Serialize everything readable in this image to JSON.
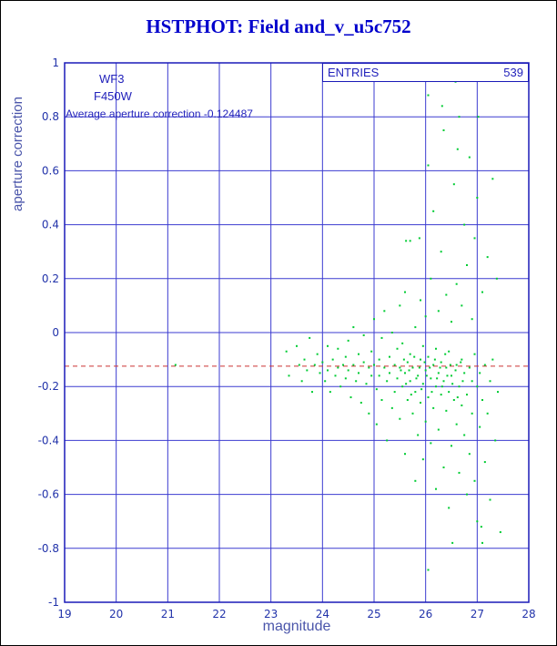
{
  "colors": {
    "title": "#0000cc",
    "text": "#2222bb",
    "ticks": "#2233aa",
    "axis_label": "#4a55aa",
    "grid": "#3b3bd0",
    "border": "#1a1ab8",
    "points": "#00cc33",
    "avg_line": "#cc3333"
  },
  "annotations": {
    "camera": "WF3",
    "filter": "F450W",
    "average_text": "Average aperture correction -0.124487",
    "entries_label": "ENTRIES",
    "entries_value": "539"
  },
  "chart_data": {
    "type": "scatter",
    "title": "HSTPHOT: Field and_v_u5c752",
    "xlabel": "magnitude",
    "ylabel": "aperture correction",
    "xlim": [
      19,
      28
    ],
    "ylim": [
      -1,
      1
    ],
    "xticks": [
      19,
      20,
      21,
      22,
      23,
      24,
      25,
      26,
      27,
      28
    ],
    "yticks": [
      -1,
      -0.8,
      -0.6,
      -0.4,
      -0.2,
      0,
      0.2,
      0.4,
      0.6,
      0.8,
      1
    ],
    "grid": true,
    "legend": "none",
    "entries": 539,
    "average_line_y": -0.124487,
    "series": [
      {
        "name": "aperture corrections",
        "marker": "dot",
        "points": [
          [
            21.15,
            -0.12
          ],
          [
            23.3,
            -0.07
          ],
          [
            23.35,
            -0.16
          ],
          [
            23.5,
            -0.05
          ],
          [
            23.55,
            -0.12
          ],
          [
            23.6,
            -0.18
          ],
          [
            23.65,
            -0.1
          ],
          [
            23.7,
            -0.14
          ],
          [
            23.75,
            -0.02
          ],
          [
            23.8,
            -0.22
          ],
          [
            23.85,
            -0.12
          ],
          [
            23.9,
            -0.08
          ],
          [
            23.95,
            -0.15
          ],
          [
            24.0,
            -0.11
          ],
          [
            24.05,
            -0.18
          ],
          [
            24.1,
            -0.05
          ],
          [
            24.1,
            -0.14
          ],
          [
            24.15,
            -0.22
          ],
          [
            24.2,
            -0.1
          ],
          [
            24.25,
            -0.16
          ],
          [
            24.3,
            -0.06
          ],
          [
            24.3,
            -0.13
          ],
          [
            24.35,
            -0.2
          ],
          [
            24.4,
            -0.12
          ],
          [
            24.45,
            -0.09
          ],
          [
            24.45,
            -0.17
          ],
          [
            24.5,
            -0.03
          ],
          [
            24.5,
            -0.14
          ],
          [
            24.55,
            -0.24
          ],
          [
            24.6,
            -0.12
          ],
          [
            24.6,
            0.02
          ],
          [
            24.65,
            -0.18
          ],
          [
            24.7,
            -0.08
          ],
          [
            24.7,
            -0.15
          ],
          [
            24.75,
            -0.26
          ],
          [
            24.8,
            -0.11
          ],
          [
            24.8,
            -0.01
          ],
          [
            24.85,
            -0.19
          ],
          [
            24.9,
            -0.13
          ],
          [
            24.9,
            -0.3
          ],
          [
            24.95,
            -0.07
          ],
          [
            24.95,
            -0.16
          ],
          [
            25.0,
            -0.12
          ],
          [
            25.0,
            0.05
          ],
          [
            25.05,
            -0.21
          ],
          [
            25.05,
            -0.34
          ],
          [
            25.1,
            -0.1
          ],
          [
            25.1,
            -0.16
          ],
          [
            25.15,
            -0.02
          ],
          [
            25.15,
            -0.25
          ],
          [
            25.2,
            -0.13
          ],
          [
            25.2,
            0.08
          ],
          [
            25.25,
            -0.18
          ],
          [
            25.25,
            -0.4
          ],
          [
            25.3,
            -0.09
          ],
          [
            25.3,
            -0.15
          ],
          [
            25.35,
            -0.28
          ],
          [
            25.35,
            0
          ],
          [
            25.4,
            -0.12
          ],
          [
            25.4,
            -0.22
          ],
          [
            25.45,
            -0.06
          ],
          [
            25.45,
            -0.17
          ],
          [
            25.5,
            -0.13
          ],
          [
            25.5,
            0.1
          ],
          [
            25.5,
            -0.32
          ],
          [
            25.52,
            -0.14
          ],
          [
            25.55,
            -0.2
          ],
          [
            25.55,
            -0.04
          ],
          [
            25.58,
            -0.1
          ],
          [
            25.6,
            -0.15
          ],
          [
            25.6,
            -0.45
          ],
          [
            25.6,
            0.15
          ],
          [
            25.62,
            -0.19
          ],
          [
            25.62,
            0.34
          ],
          [
            25.65,
            -0.11
          ],
          [
            25.65,
            -0.25
          ],
          [
            25.68,
            -0.14
          ],
          [
            25.7,
            -0.08
          ],
          [
            25.7,
            -0.18
          ],
          [
            25.7,
            0.34
          ],
          [
            25.72,
            -0.23
          ],
          [
            25.75,
            -0.3
          ],
          [
            25.75,
            -0.13
          ],
          [
            25.78,
            -0.09
          ],
          [
            25.8,
            -0.22
          ],
          [
            25.8,
            0.02
          ],
          [
            25.8,
            -0.55
          ],
          [
            25.82,
            -0.17
          ],
          [
            25.85,
            -0.16
          ],
          [
            25.85,
            -0.38
          ],
          [
            25.88,
            -0.13
          ],
          [
            25.88,
            0.35
          ],
          [
            25.9,
            -0.1
          ],
          [
            25.9,
            -0.26
          ],
          [
            25.9,
            0.12
          ],
          [
            25.92,
            -0.21
          ],
          [
            25.95,
            -0.19
          ],
          [
            25.95,
            -0.05
          ],
          [
            25.95,
            -0.47
          ],
          [
            25.98,
            -0.11
          ],
          [
            26.0,
            -0.14
          ],
          [
            26.0,
            0.06
          ],
          [
            26.0,
            -0.33
          ],
          [
            26.02,
            -0.16
          ],
          [
            26.05,
            -0.24
          ],
          [
            26.05,
            -0.09
          ],
          [
            26.05,
            0.62
          ],
          [
            26.05,
            0.88
          ],
          [
            26.05,
            -0.88
          ],
          [
            26.08,
            -0.13
          ],
          [
            26.1,
            -0.17
          ],
          [
            26.1,
            -0.41
          ],
          [
            26.1,
            0.2
          ],
          [
            26.12,
            -0.22
          ],
          [
            26.15,
            -0.12
          ],
          [
            26.15,
            -0.28
          ],
          [
            26.15,
            0.45
          ],
          [
            26.18,
            -0.1
          ],
          [
            26.2,
            -0.06
          ],
          [
            26.2,
            -0.2
          ],
          [
            26.2,
            -0.58
          ],
          [
            26.22,
            -0.17
          ],
          [
            26.25,
            -0.15
          ],
          [
            26.25,
            0.08
          ],
          [
            26.25,
            -0.36
          ],
          [
            26.28,
            -0.13
          ],
          [
            26.3,
            -0.23
          ],
          [
            26.3,
            -0.11
          ],
          [
            26.3,
            0.3
          ],
          [
            26.32,
            -0.2
          ],
          [
            26.32,
            0.84
          ],
          [
            26.35,
            -0.18
          ],
          [
            26.35,
            -0.5
          ],
          [
            26.35,
            0.75
          ],
          [
            26.38,
            -0.08
          ],
          [
            26.4,
            -0.13
          ],
          [
            26.4,
            -0.29
          ],
          [
            26.4,
            0.14
          ],
          [
            26.42,
            -0.16
          ],
          [
            26.45,
            -0.07
          ],
          [
            26.45,
            -0.22
          ],
          [
            26.45,
            -0.65
          ],
          [
            26.48,
            -0.12
          ],
          [
            26.5,
            -0.16
          ],
          [
            26.5,
            0.04
          ],
          [
            26.5,
            -0.42
          ],
          [
            26.52,
            -0.19
          ],
          [
            26.52,
            -0.78
          ],
          [
            26.55,
            -0.25
          ],
          [
            26.55,
            0.55
          ],
          [
            26.58,
            -0.14
          ],
          [
            26.58,
            0.93
          ],
          [
            26.6,
            -0.12
          ],
          [
            26.6,
            -0.34
          ],
          [
            26.6,
            0.18
          ],
          [
            26.62,
            -0.24
          ],
          [
            26.62,
            0.68
          ],
          [
            26.65,
            -0.2
          ],
          [
            26.65,
            -0.52
          ],
          [
            26.65,
            0.8
          ],
          [
            26.68,
            -0.11
          ],
          [
            26.7,
            -0.1
          ],
          [
            26.7,
            -0.27
          ],
          [
            26.7,
            0.1
          ],
          [
            26.72,
            -0.18
          ],
          [
            26.75,
            -0.38
          ],
          [
            26.75,
            -0.15
          ],
          [
            26.75,
            0.4
          ],
          [
            26.8,
            -0.23
          ],
          [
            26.8,
            -0.6
          ],
          [
            26.8,
            0.25
          ],
          [
            26.85,
            -0.13
          ],
          [
            26.85,
            -0.45
          ],
          [
            26.85,
            0.65
          ],
          [
            26.9,
            -0.18
          ],
          [
            26.9,
            -0.3
          ],
          [
            26.9,
            0.05
          ],
          [
            26.95,
            -0.55
          ],
          [
            26.95,
            -0.08
          ],
          [
            26.95,
            0.35
          ],
          [
            27.0,
            -0.2
          ],
          [
            27.0,
            -0.7
          ],
          [
            27.0,
            0.5
          ],
          [
            27.02,
            0.8
          ],
          [
            27.05,
            -0.15
          ],
          [
            27.05,
            -0.35
          ],
          [
            27.08,
            -0.72
          ],
          [
            27.1,
            -0.25
          ],
          [
            27.1,
            0.15
          ],
          [
            27.1,
            -0.78
          ],
          [
            27.15,
            -0.12
          ],
          [
            27.15,
            -0.48
          ],
          [
            27.2,
            -0.3
          ],
          [
            27.2,
            0.28
          ],
          [
            27.25,
            -0.18
          ],
          [
            27.25,
            -0.62
          ],
          [
            27.3,
            -0.1
          ],
          [
            27.3,
            0.57
          ],
          [
            27.35,
            -0.4
          ],
          [
            27.38,
            0.2
          ],
          [
            27.4,
            -0.22
          ],
          [
            27.45,
            -0.74
          ]
        ]
      }
    ]
  }
}
